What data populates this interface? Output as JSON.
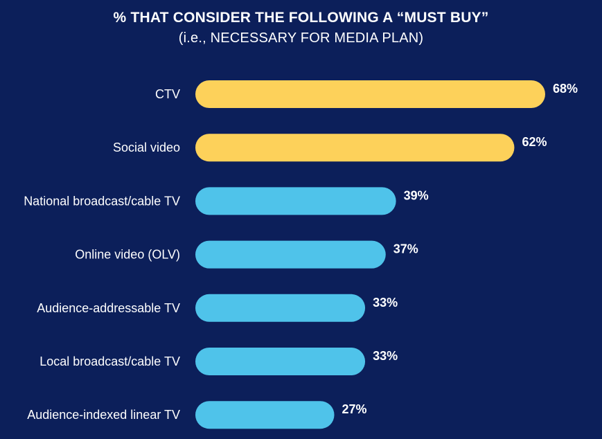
{
  "chart_data": {
    "type": "bar",
    "orientation": "horizontal",
    "title": "% THAT CONSIDER THE FOLLOWING A “MUST BUY”",
    "subtitle": "(i.e., NECESSARY FOR MEDIA PLAN)",
    "categories": [
      "CTV",
      "Social video",
      "National broadcast/cable TV",
      "Online video (OLV)",
      "Audience-addressable TV",
      "Local broadcast/cable TV",
      "Audience-indexed linear TV"
    ],
    "values": [
      68,
      62,
      39,
      37,
      33,
      33,
      27
    ],
    "value_labels": [
      "68%",
      "62%",
      "39%",
      "37%",
      "33%",
      "33%",
      "27%"
    ],
    "bar_colors": [
      "#fdd15a",
      "#fdd15a",
      "#4fc3ea",
      "#4fc3ea",
      "#4fc3ea",
      "#4fc3ea",
      "#4fc3ea"
    ],
    "xlim": [
      0,
      68
    ],
    "grid": false,
    "legend": "none"
  },
  "colors": {
    "background": "#0c1f5a",
    "highlight": "#fdd15a",
    "standard": "#4fc3ea",
    "text": "#ffffff"
  }
}
